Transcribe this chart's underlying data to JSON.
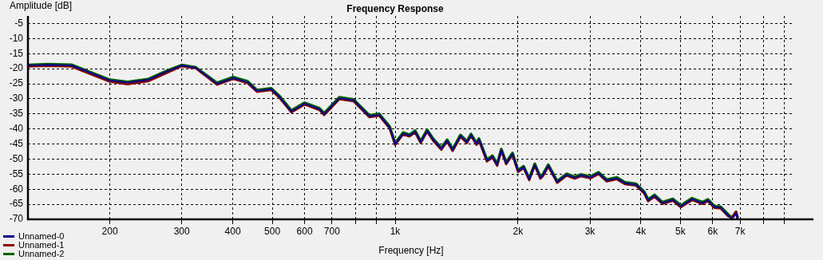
{
  "chart_data": {
    "type": "line",
    "title": "Frequency Response",
    "xlabel": "Frequency [Hz]",
    "ylabel": "Amplitude [dB]",
    "log": "x",
    "grid": true,
    "legend": "bottom left",
    "marker": "none",
    "line_style": "solid",
    "xlim": [
      126,
      9500
    ],
    "xticks": [
      200,
      300,
      400,
      500,
      600,
      700,
      {
        "value": 800,
        "label": null
      },
      {
        "value": 900,
        "label": null
      },
      {
        "value": 1000,
        "label": "1k"
      },
      {
        "value": 2000,
        "label": "2k"
      },
      {
        "value": 3000,
        "label": "3k"
      },
      {
        "value": 4000,
        "label": "4k"
      },
      {
        "value": 5000,
        "label": "5k"
      },
      {
        "value": 6000,
        "label": "6k"
      },
      {
        "value": 7000,
        "label": "7k"
      },
      {
        "value": 8000,
        "label": null
      },
      {
        "value": 9000,
        "label": null
      }
    ],
    "ylim": [
      -70,
      -2.5
    ],
    "yticks": [
      -5,
      -10,
      -15,
      -20,
      -25,
      -30,
      -35,
      -40,
      -45,
      -50,
      -55,
      -60,
      -65,
      -70
    ],
    "x": [
      126,
      141,
      161,
      200,
      221,
      248,
      277,
      300,
      325,
      366,
      401,
      435,
      459,
      497,
      521,
      557,
      600,
      652,
      670,
      730,
      791,
      865,
      914,
      969,
      1000,
      1046,
      1084,
      1119,
      1155,
      1197,
      1241,
      1298,
      1340,
      1383,
      1446,
      1499,
      1534,
      1583,
      1604,
      1678,
      1731,
      1778,
      1820,
      1870,
      1938,
      2000,
      2064,
      2130,
      2198,
      2268,
      2300,
      2372,
      2494,
      2631,
      2753,
      2852,
      3011,
      3150,
      3297,
      3492,
      3653,
      3891,
      4074,
      4165,
      4318,
      4517,
      4789,
      5010,
      5336,
      5658,
      5837,
      6052,
      6271,
      6531,
      6682,
      6838,
      6904
    ],
    "series": [
      {
        "name": "Unnamed-0",
        "color": "#00008b",
        "values": [
          -18.9,
          -18.7,
          -18.9,
          -23.9,
          -24.6,
          -23.7,
          -20.8,
          -18.9,
          -19.7,
          -25.0,
          -23.1,
          -24.5,
          -27.4,
          -26.8,
          -29.4,
          -34.2,
          -31.6,
          -33.4,
          -35.1,
          -29.8,
          -30.5,
          -35.8,
          -35.3,
          -39.5,
          -45.0,
          -41.5,
          -42.2,
          -40.9,
          -44.4,
          -40.6,
          -43.7,
          -46.6,
          -43.9,
          -47.0,
          -42.3,
          -44.4,
          -42.0,
          -45.0,
          -43.5,
          -50.5,
          -49.2,
          -51.9,
          -47.0,
          -51.4,
          -48.3,
          -54.0,
          -52.7,
          -56.7,
          -51.9,
          -56.2,
          -55.4,
          -52.2,
          -57.6,
          -55.2,
          -56.2,
          -55.4,
          -56.1,
          -54.7,
          -57.1,
          -56.4,
          -58.0,
          -58.5,
          -61.1,
          -63.7,
          -62.2,
          -64.6,
          -63.5,
          -65.7,
          -63.3,
          -64.6,
          -63.7,
          -65.9,
          -66.1,
          -68.6,
          -69.9,
          -67.9,
          -69.9
        ]
      },
      {
        "name": "Unnamed-1",
        "color": "#8b0000",
        "values": [
          -19.3,
          -19.1,
          -19.3,
          -24.3,
          -25.2,
          -24.2,
          -21.3,
          -19.2,
          -19.9,
          -25.3,
          -23.4,
          -24.8,
          -27.7,
          -27.1,
          -29.7,
          -34.5,
          -31.9,
          -33.7,
          -35.4,
          -30.1,
          -30.8,
          -36.1,
          -35.6,
          -39.8,
          -45.3,
          -41.8,
          -42.5,
          -41.2,
          -44.7,
          -40.9,
          -44.0,
          -46.9,
          -44.2,
          -47.3,
          -42.6,
          -44.7,
          -42.3,
          -45.3,
          -43.8,
          -50.8,
          -49.5,
          -52.2,
          -47.3,
          -51.7,
          -48.6,
          -54.3,
          -53.0,
          -57.0,
          -52.2,
          -56.5,
          -55.7,
          -52.5,
          -57.9,
          -55.5,
          -56.5,
          -55.7,
          -56.4,
          -55.0,
          -57.4,
          -56.7,
          -58.3,
          -58.8,
          -61.4,
          -64.0,
          -62.5,
          -64.9,
          -63.8,
          -66.0,
          -63.6,
          -64.9,
          -64.0,
          -66.2,
          -66.4,
          -68.9,
          -69.3,
          -67.4,
          -69.3
        ]
      },
      {
        "name": "Unnamed-2",
        "color": "#006400",
        "values": [
          -18.8,
          -18.5,
          -18.7,
          -23.7,
          -24.4,
          -23.5,
          -20.6,
          -18.8,
          -19.6,
          -24.7,
          -22.8,
          -24.2,
          -27.1,
          -26.5,
          -29.1,
          -33.9,
          -31.3,
          -33.1,
          -34.8,
          -29.5,
          -30.2,
          -35.5,
          -35.0,
          -39.2,
          -44.7,
          -41.2,
          -41.9,
          -40.6,
          -44.1,
          -40.3,
          -43.4,
          -46.3,
          -43.6,
          -46.7,
          -42.0,
          -44.1,
          -41.7,
          -44.7,
          -43.2,
          -50.2,
          -48.9,
          -51.6,
          -46.7,
          -51.1,
          -48.0,
          -53.7,
          -52.4,
          -56.4,
          -51.6,
          -55.9,
          -55.1,
          -51.9,
          -57.3,
          -54.9,
          -55.9,
          -55.1,
          -55.8,
          -54.4,
          -56.8,
          -56.1,
          -57.7,
          -58.2,
          -60.8,
          -63.4,
          -61.9,
          -64.3,
          -63.2,
          -65.4,
          -63.0,
          -64.3,
          -63.4,
          -65.6,
          -65.8,
          -68.3,
          -69.6,
          -67.6,
          -69.6
        ]
      }
    ]
  }
}
